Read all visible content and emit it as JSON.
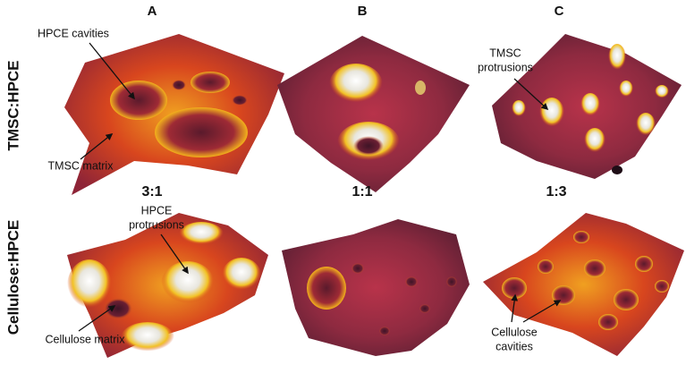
{
  "columns": [
    "A",
    "B",
    "C"
  ],
  "rows": [
    "TMSC:HPCE",
    "Cellulose:HPCE"
  ],
  "ratios": [
    "3:1",
    "1:1",
    "1:3"
  ],
  "annotations": [
    {
      "lines": [
        "HPCE cavities"
      ]
    },
    {
      "lines": [
        "TMSC matrix"
      ]
    },
    {
      "lines": [
        "TMSC",
        "protrusions"
      ]
    },
    {
      "lines": [
        "HPCE",
        "protrusions"
      ]
    },
    {
      "lines": [
        "Cellulose matrix"
      ]
    },
    {
      "lines": [
        "Cellulose",
        "cavities"
      ]
    }
  ]
}
